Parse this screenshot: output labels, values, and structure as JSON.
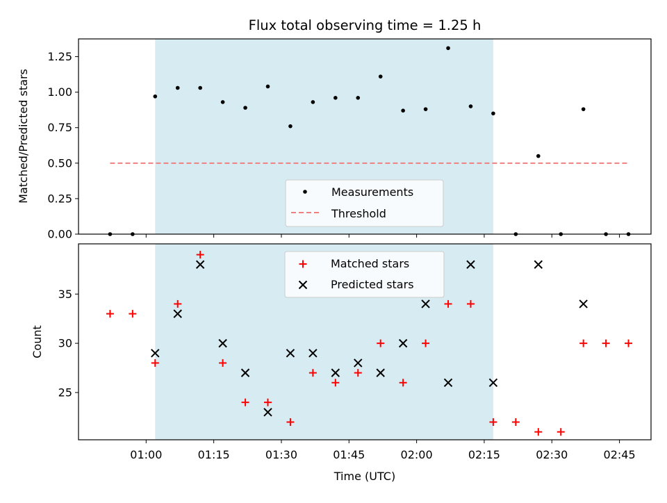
{
  "colors": {
    "span": "#add8e6",
    "measurement": "#000000",
    "threshold": "#f08080",
    "matched": "#ff0000",
    "predicted": "#000000"
  },
  "chart_data": [
    {
      "type": "scatter",
      "title": "Flux total observing time = 1.25 h",
      "xlabel": "",
      "ylabel": "Matched/Predicted stars",
      "xlim": [
        "00:45",
        "02:52"
      ],
      "ylim": [
        0,
        1.375
      ],
      "yticks": [
        "0.00",
        "0.25",
        "0.50",
        "0.75",
        "1.00",
        "1.25"
      ],
      "grid": false,
      "legend_position": "lower center",
      "shaded_span": {
        "from": "01:02",
        "to": "02:17"
      },
      "series": [
        {
          "name": "Measurements",
          "marker": "dot",
          "x": [
            "00:52",
            "00:57",
            "01:02",
            "01:07",
            "01:12",
            "01:17",
            "01:22",
            "01:27",
            "01:32",
            "01:37",
            "01:42",
            "01:47",
            "01:52",
            "01:57",
            "02:02",
            "02:07",
            "02:12",
            "02:17",
            "02:22",
            "02:27",
            "02:32",
            "02:37",
            "02:42",
            "02:47"
          ],
          "y": [
            0.0,
            0.0,
            0.97,
            1.03,
            1.03,
            0.93,
            0.89,
            1.04,
            0.76,
            0.93,
            0.96,
            0.96,
            1.11,
            0.87,
            0.88,
            1.31,
            0.9,
            0.85,
            0.0,
            0.55,
            0.0,
            0.88,
            0.0,
            0.0
          ]
        },
        {
          "name": "Threshold",
          "marker": "dashed-line",
          "x": [
            "00:52",
            "02:47"
          ],
          "y": [
            0.5,
            0.5
          ]
        }
      ]
    },
    {
      "type": "scatter",
      "title": "",
      "xlabel": "Time (UTC)",
      "ylabel": "Count",
      "xlim": [
        "00:45",
        "02:52"
      ],
      "ylim": [
        20.2,
        40.1
      ],
      "xticks": [
        "01:00",
        "01:15",
        "01:30",
        "01:45",
        "02:00",
        "02:15",
        "02:30",
        "02:45"
      ],
      "yticks": [
        "25",
        "30",
        "35"
      ],
      "grid": false,
      "legend_position": "upper center",
      "shaded_span": {
        "from": "01:02",
        "to": "02:17"
      },
      "series": [
        {
          "name": "Matched stars",
          "marker": "plus",
          "x": [
            "00:52",
            "00:57",
            "01:02",
            "01:07",
            "01:12",
            "01:17",
            "01:22",
            "01:27",
            "01:32",
            "01:37",
            "01:42",
            "01:47",
            "01:52",
            "01:57",
            "02:02",
            "02:07",
            "02:12",
            "02:17",
            "02:22",
            "02:27",
            "02:32",
            "02:37",
            "02:42",
            "02:47"
          ],
          "y": [
            33,
            33,
            28,
            34,
            39,
            28,
            24,
            24,
            22,
            27,
            26,
            27,
            30,
            26,
            30,
            34,
            34,
            22,
            22,
            21,
            21,
            30,
            30,
            30
          ]
        },
        {
          "name": "Predicted stars",
          "marker": "x",
          "x": [
            "01:02",
            "01:07",
            "01:12",
            "01:17",
            "01:22",
            "01:27",
            "01:32",
            "01:37",
            "01:42",
            "01:47",
            "01:52",
            "01:57",
            "02:02",
            "02:07",
            "02:12",
            "02:17",
            "02:27",
            "02:37"
          ],
          "y": [
            29,
            33,
            38,
            30,
            27,
            23,
            29,
            29,
            27,
            28,
            27,
            30,
            34,
            26,
            38,
            26,
            38,
            34
          ]
        }
      ]
    }
  ]
}
